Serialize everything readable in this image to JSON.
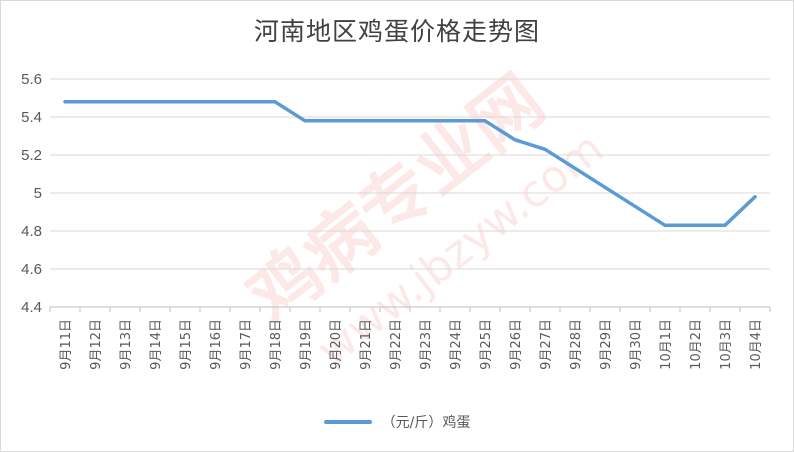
{
  "chart_data": {
    "type": "line",
    "title": "河南地区鸡蛋价格走势图",
    "categories": [
      "9月11日",
      "9月12日",
      "9月13日",
      "9月14日",
      "9月15日",
      "9月16日",
      "9月17日",
      "9月18日",
      "9月19日",
      "9月20日",
      "9月21日",
      "9月22日",
      "9月23日",
      "9月24日",
      "9月25日",
      "9月26日",
      "9月27日",
      "9月28日",
      "9月29日",
      "9月30日",
      "10月1日",
      "10月2日",
      "10月3日",
      "10月4日"
    ],
    "series": [
      {
        "name": "（元/斤）鸡蛋",
        "color": "#5b9bd5",
        "values": [
          5.48,
          5.48,
          5.48,
          5.48,
          5.48,
          5.48,
          5.48,
          5.48,
          5.38,
          5.38,
          5.38,
          5.38,
          5.38,
          5.38,
          5.38,
          5.28,
          5.23,
          5.13,
          5.03,
          4.93,
          4.83,
          4.83,
          4.83,
          4.98
        ]
      }
    ],
    "ylim": [
      4.4,
      5.6
    ],
    "yticks": [
      "4.4",
      "4.6",
      "4.8",
      "5",
      "5.2",
      "5.4",
      "5.6"
    ],
    "grid": true,
    "legend": "bottom",
    "xlabel": "",
    "ylabel": ""
  },
  "watermark": {
    "main": "鸡病专业网",
    "url": "www.jbzyw.com",
    "color": "#e8584d"
  }
}
